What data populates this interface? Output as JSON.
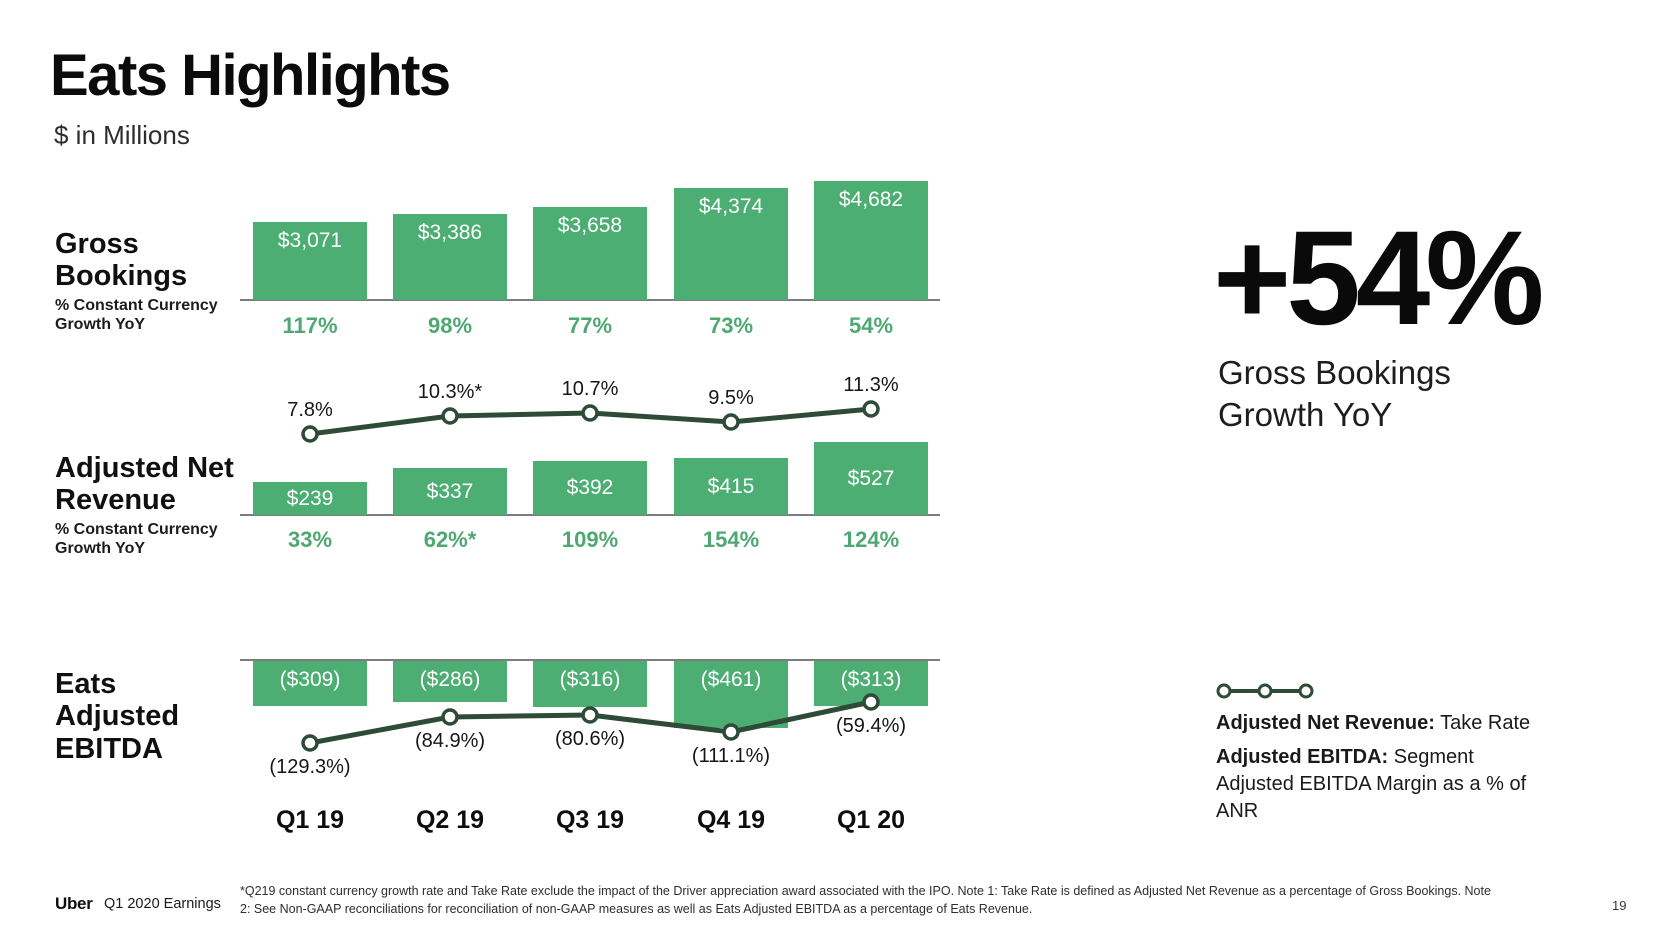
{
  "header": {
    "title": "Eats Highlights",
    "subtitle": "$ in Millions"
  },
  "sections": {
    "gross_bookings": {
      "title": "Gross\nBookings",
      "caption": "% Constant Currency\nGrowth YoY"
    },
    "adjusted_net_revenue": {
      "title": "Adjusted Net\nRevenue",
      "caption": "% Constant Currency\nGrowth YoY"
    },
    "eats_adjusted_ebitda": {
      "title": "Eats\nAdjusted\nEBITDA"
    }
  },
  "chart_data": [
    {
      "type": "bar",
      "title": "Gross Bookings",
      "unit": "$ in Millions",
      "categories": [
        "Q1 19",
        "Q2 19",
        "Q3 19",
        "Q4 19",
        "Q1 20"
      ],
      "values": [
        3071,
        3386,
        3658,
        4374,
        4682
      ],
      "bar_labels": [
        "$3,071",
        "$3,386",
        "$3,658",
        "$4,374",
        "$4,682"
      ],
      "growth_label_title": "% Constant Currency Growth YoY",
      "growth_labels": [
        "117%",
        "98%",
        "77%",
        "73%",
        "54%"
      ],
      "ylim": [
        0,
        5000
      ],
      "grid": false
    },
    {
      "type": "bar+line",
      "title": "Adjusted Net Revenue",
      "unit": "$ in Millions",
      "categories": [
        "Q1 19",
        "Q2 19",
        "Q3 19",
        "Q4 19",
        "Q1 20"
      ],
      "values": [
        239,
        337,
        392,
        415,
        527
      ],
      "bar_labels": [
        "$239",
        "$337",
        "$392",
        "$415",
        "$527"
      ],
      "growth_label_title": "% Constant Currency Growth YoY",
      "growth_labels": [
        "33%",
        "62%*",
        "109%",
        "154%",
        "124%"
      ],
      "line": {
        "name": "Take Rate",
        "values": [
          7.8,
          10.3,
          10.7,
          9.5,
          11.3
        ],
        "labels": [
          "7.8%",
          "10.3%*",
          "10.7%",
          "9.5%",
          "11.3%"
        ]
      },
      "ylim": [
        0,
        600
      ],
      "grid": false
    },
    {
      "type": "bar+line",
      "title": "Eats Adjusted EBITDA",
      "unit": "$ in Millions",
      "categories": [
        "Q1 19",
        "Q2 19",
        "Q3 19",
        "Q4 19",
        "Q1 20"
      ],
      "values": [
        -309,
        -286,
        -316,
        -461,
        -313
      ],
      "bar_labels": [
        "($309)",
        "($286)",
        "($316)",
        "($461)",
        "($313)"
      ],
      "line": {
        "name": "Adjusted EBITDA Margin as a % of ANR",
        "values": [
          -129.3,
          -84.9,
          -80.6,
          -111.1,
          -59.4
        ],
        "labels": [
          "(129.3%)",
          "(84.9%)",
          "(80.6%)",
          "(111.1%)",
          "(59.4%)"
        ]
      },
      "ylim": [
        -500,
        0
      ],
      "grid": false
    }
  ],
  "highlight": {
    "stat": "+54%",
    "caption": "Gross Bookings\nGrowth YoY"
  },
  "legend": {
    "marker": "line-with-dots",
    "items": [
      {
        "bold": "Adjusted Net Revenue:",
        "rest": " Take Rate"
      },
      {
        "bold": "Adjusted EBITDA:",
        "rest": " Segment Adjusted EBITDA Margin as a % of ANR"
      }
    ]
  },
  "footer": {
    "logo": "Uber",
    "label": "Q1 2020 Earnings",
    "footnote": "*Q219 constant currency growth rate and Take Rate exclude the impact of the Driver appreciation award associated with the IPO. Note 1: Take Rate is defined as Adjusted Net Revenue as a percentage of Gross Bookings. Note 2: See Non-GAAP reconciliations for reconciliation of non-GAAP measures as well as Eats Adjusted EBITDA as a percentage of Eats Revenue.",
    "page": "19"
  },
  "colors": {
    "bar_green": "#4dae74",
    "line_green": "#2e4b38",
    "growth_green": "#4da871",
    "axis_gray": "#7d7d7d"
  }
}
